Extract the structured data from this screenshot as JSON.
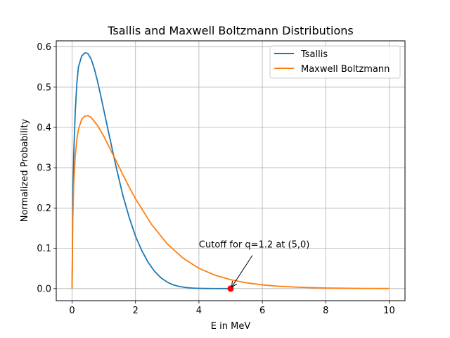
{
  "chart_data": {
    "type": "line",
    "title": "Tsallis and Maxwell Boltzmann Distributions",
    "xlabel": "E in MeV",
    "ylabel": "Normalized Probability",
    "xlim": [
      -0.5,
      10.5
    ],
    "ylim": [
      -0.03,
      0.615
    ],
    "xticks": [
      0,
      2,
      4,
      6,
      8,
      10
    ],
    "yticks": [
      0.0,
      0.1,
      0.2,
      0.3,
      0.4,
      0.5,
      0.6
    ],
    "grid": true,
    "legend_position": "top-right",
    "series": [
      {
        "name": "Tsallis",
        "color": "#1f77b4",
        "x": [
          0,
          0.02,
          0.05,
          0.1,
          0.15,
          0.2,
          0.3,
          0.4,
          0.45,
          0.5,
          0.6,
          0.7,
          0.8,
          0.9,
          1.0,
          1.2,
          1.4,
          1.6,
          1.8,
          2.0,
          2.2,
          2.4,
          2.6,
          2.8,
          3.0,
          3.2,
          3.4,
          3.6,
          3.8,
          4.0,
          4.2,
          4.5,
          4.8,
          5.0
        ],
        "y": [
          0,
          0.22,
          0.33,
          0.44,
          0.51,
          0.55,
          0.577,
          0.585,
          0.585,
          0.583,
          0.57,
          0.546,
          0.515,
          0.48,
          0.443,
          0.37,
          0.298,
          0.232,
          0.177,
          0.13,
          0.094,
          0.065,
          0.043,
          0.027,
          0.016,
          0.009,
          0.005,
          0.0025,
          0.0012,
          0.0006,
          0.0003,
          0.0001,
          3e-05,
          0
        ]
      },
      {
        "name": "Maxwell Boltzmann",
        "color": "#ff7f0e",
        "x": [
          0,
          0.02,
          0.05,
          0.1,
          0.15,
          0.2,
          0.3,
          0.4,
          0.5,
          0.6,
          0.8,
          1.0,
          1.2,
          1.4,
          1.6,
          1.8,
          2.0,
          2.5,
          3.0,
          3.5,
          4.0,
          4.5,
          5.0,
          5.5,
          6.0,
          6.5,
          7.0,
          7.5,
          8.0,
          8.5,
          9.0,
          9.5,
          10.0
        ],
        "y": [
          0,
          0.165,
          0.255,
          0.33,
          0.37,
          0.395,
          0.42,
          0.428,
          0.429,
          0.425,
          0.405,
          0.378,
          0.347,
          0.315,
          0.283,
          0.252,
          0.223,
          0.16,
          0.111,
          0.0755,
          0.0505,
          0.0335,
          0.022,
          0.0143,
          0.0092,
          0.0059,
          0.0038,
          0.0024,
          0.0015,
          0.001,
          0.0006,
          0.0004,
          0.00025
        ]
      }
    ],
    "markers": [
      {
        "x": 5,
        "y": 0,
        "color": "#ff0000"
      }
    ],
    "annotations": [
      {
        "text": "Cutoff for q=1.2 at (5,0)",
        "text_x": 4.0,
        "text_y": 0.1,
        "point_x": 5,
        "point_y": 0
      }
    ]
  }
}
